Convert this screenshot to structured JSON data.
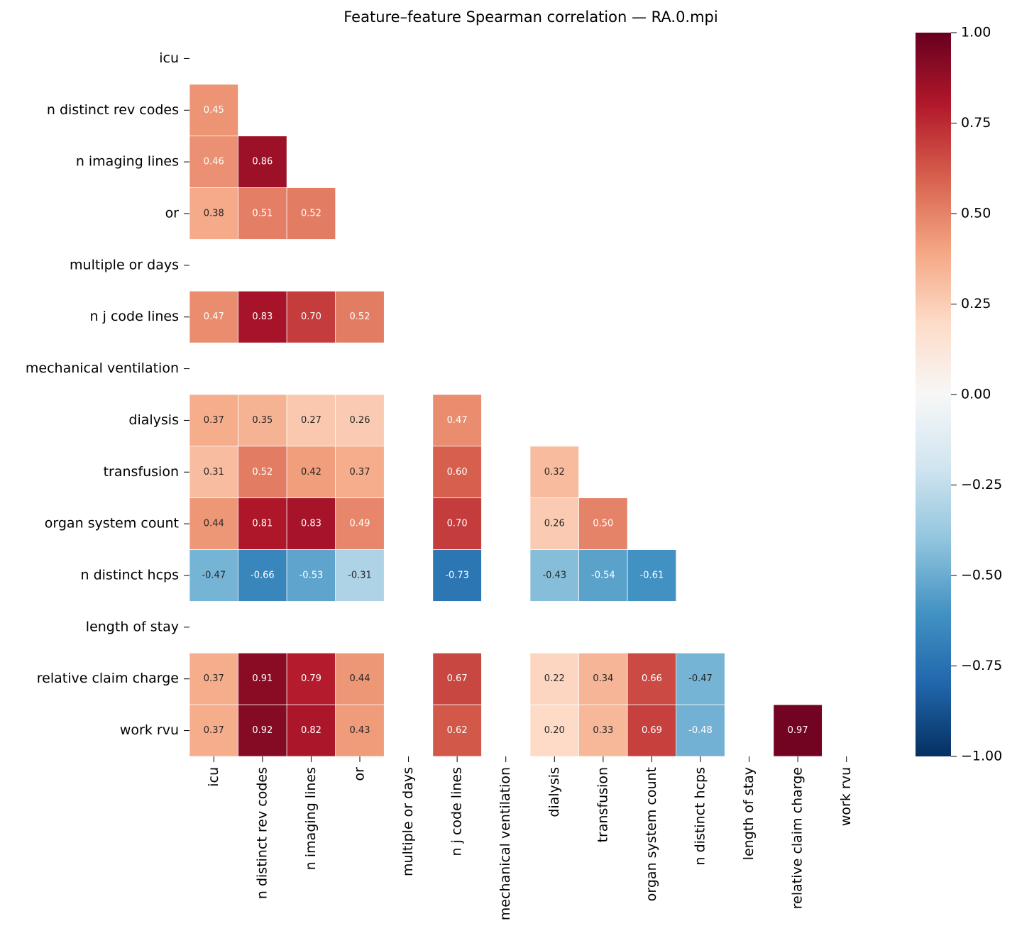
{
  "chart_data": {
    "type": "heatmap",
    "title": "Feature–feature Spearman correlation — RA.0.mpi",
    "categories": [
      "icu",
      "n distinct rev codes",
      "n imaging lines",
      "or",
      "multiple or days",
      "n j code lines",
      "mechanical ventilation",
      "dialysis",
      "transfusion",
      "organ system count",
      "n distinct hcps",
      "length of stay",
      "relative claim charge",
      "work rvu"
    ],
    "values": [
      [
        null,
        null,
        null,
        null,
        null,
        null,
        null,
        null,
        null,
        null,
        null,
        null,
        null,
        null
      ],
      [
        0.45,
        null,
        null,
        null,
        null,
        null,
        null,
        null,
        null,
        null,
        null,
        null,
        null,
        null
      ],
      [
        0.46,
        0.86,
        null,
        null,
        null,
        null,
        null,
        null,
        null,
        null,
        null,
        null,
        null,
        null
      ],
      [
        0.38,
        0.51,
        0.52,
        null,
        null,
        null,
        null,
        null,
        null,
        null,
        null,
        null,
        null,
        null
      ],
      [
        null,
        null,
        null,
        null,
        null,
        null,
        null,
        null,
        null,
        null,
        null,
        null,
        null,
        null
      ],
      [
        0.47,
        0.83,
        0.7,
        0.52,
        null,
        null,
        null,
        null,
        null,
        null,
        null,
        null,
        null,
        null
      ],
      [
        null,
        null,
        null,
        null,
        null,
        null,
        null,
        null,
        null,
        null,
        null,
        null,
        null,
        null
      ],
      [
        0.37,
        0.35,
        0.27,
        0.26,
        null,
        0.47,
        null,
        null,
        null,
        null,
        null,
        null,
        null,
        null
      ],
      [
        0.31,
        0.52,
        0.42,
        0.37,
        null,
        0.6,
        null,
        0.32,
        null,
        null,
        null,
        null,
        null,
        null
      ],
      [
        0.44,
        0.81,
        0.83,
        0.49,
        null,
        0.7,
        null,
        0.26,
        0.5,
        null,
        null,
        null,
        null,
        null
      ],
      [
        -0.47,
        -0.66,
        -0.53,
        -0.31,
        null,
        -0.73,
        null,
        -0.43,
        -0.54,
        -0.61,
        null,
        null,
        null,
        null
      ],
      [
        null,
        null,
        null,
        null,
        null,
        null,
        null,
        null,
        null,
        null,
        null,
        null,
        null,
        null
      ],
      [
        0.37,
        0.91,
        0.79,
        0.44,
        null,
        0.67,
        null,
        0.22,
        0.34,
        0.66,
        -0.47,
        null,
        null,
        null
      ],
      [
        0.37,
        0.92,
        0.82,
        0.43,
        null,
        0.62,
        null,
        0.2,
        0.33,
        0.69,
        -0.48,
        null,
        0.97,
        null
      ]
    ],
    "value_labels": [
      [
        null,
        null,
        null,
        null,
        null,
        null,
        null,
        null,
        null,
        null,
        null,
        null,
        null,
        null
      ],
      [
        "0.45",
        null,
        null,
        null,
        null,
        null,
        null,
        null,
        null,
        null,
        null,
        null,
        null,
        null
      ],
      [
        "0.46",
        "0.86",
        null,
        null,
        null,
        null,
        null,
        null,
        null,
        null,
        null,
        null,
        null,
        null
      ],
      [
        "0.38",
        "0.51",
        "0.52",
        null,
        null,
        null,
        null,
        null,
        null,
        null,
        null,
        null,
        null,
        null
      ],
      [
        null,
        null,
        null,
        null,
        null,
        null,
        null,
        null,
        null,
        null,
        null,
        null,
        null,
        null
      ],
      [
        "0.47",
        "0.83",
        "0.70",
        "0.52",
        null,
        null,
        null,
        null,
        null,
        null,
        null,
        null,
        null,
        null
      ],
      [
        null,
        null,
        null,
        null,
        null,
        null,
        null,
        null,
        null,
        null,
        null,
        null,
        null,
        null
      ],
      [
        "0.37",
        "0.35",
        "0.27",
        "0.26",
        null,
        "0.47",
        null,
        null,
        null,
        null,
        null,
        null,
        null,
        null
      ],
      [
        "0.31",
        "0.52",
        "0.42",
        "0.37",
        null,
        "0.60",
        null,
        "0.32",
        null,
        null,
        null,
        null,
        null,
        null
      ],
      [
        "0.44",
        "0.81",
        "0.83",
        "0.49",
        null,
        "0.70",
        null,
        "0.26",
        "0.50",
        null,
        null,
        null,
        null,
        null
      ],
      [
        "-0.47",
        "-0.66",
        "-0.53",
        "-0.31",
        null,
        "-0.73",
        null,
        "-0.43",
        "-0.54",
        "-0.61",
        null,
        null,
        null,
        null
      ],
      [
        null,
        null,
        null,
        null,
        null,
        null,
        null,
        null,
        null,
        null,
        null,
        null,
        null,
        null
      ],
      [
        "0.37",
        "0.91",
        "0.79",
        "0.44",
        null,
        "0.67",
        null,
        "0.22",
        "0.34",
        "0.66",
        "-0.47",
        null,
        null,
        null
      ],
      [
        "0.37",
        "0.92",
        "0.82",
        "0.43",
        null,
        "0.62",
        null,
        "0.20",
        "0.33",
        "0.69",
        "-0.48",
        null,
        "0.97",
        null
      ]
    ],
    "colors": [
      "#053061",
      "#2166ac",
      "#4393c3",
      "#92c5de",
      "#d1e5f0",
      "#f7f7f7",
      "#fddbc7",
      "#f4a582",
      "#d6604d",
      "#b2182b",
      "#67001f"
    ],
    "clim": [
      -1,
      1
    ],
    "cticks": [
      {
        "value": -1,
        "label": "−1.00"
      },
      {
        "value": -0.75,
        "label": "−0.75"
      },
      {
        "value": -0.5,
        "label": "−0.50"
      },
      {
        "value": -0.25,
        "label": "−0.25"
      },
      {
        "value": 0,
        "label": "0.00"
      },
      {
        "value": 0.25,
        "label": "0.25"
      },
      {
        "value": 0.5,
        "label": "0.50"
      },
      {
        "value": 0.75,
        "label": "0.75"
      },
      {
        "value": 1,
        "label": "1.00"
      }
    ]
  }
}
